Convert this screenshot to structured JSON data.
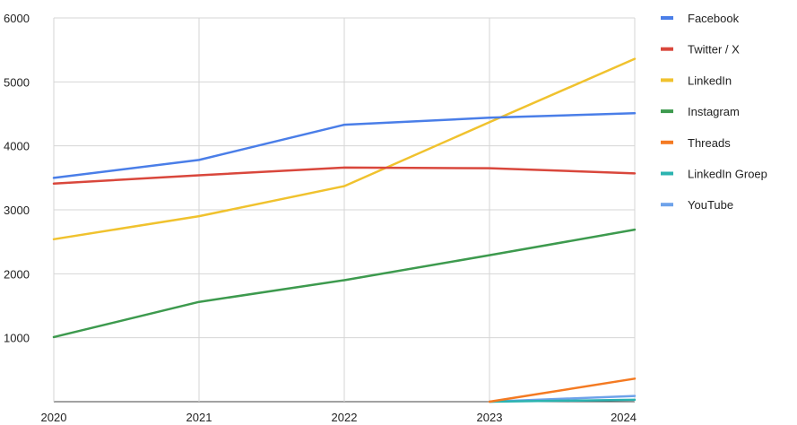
{
  "chart_data": {
    "type": "line",
    "x": [
      "2020",
      "2021",
      "2022",
      "2023",
      "2024"
    ],
    "ylim": [
      0,
      6000
    ],
    "yticks": [
      "1000",
      "2000",
      "3000",
      "4000",
      "5000",
      "6000"
    ],
    "grid": true,
    "legend_position": "right",
    "series": [
      {
        "name": "Facebook",
        "color": "#4a7ee8",
        "values": [
          3500,
          3780,
          4330,
          4440,
          4510
        ]
      },
      {
        "name": "Twitter / X",
        "color": "#d9473c",
        "values": [
          3410,
          3540,
          3660,
          3650,
          3570
        ]
      },
      {
        "name": "LinkedIn",
        "color": "#f0c22e",
        "values": [
          2540,
          2900,
          3370,
          4370,
          5360
        ]
      },
      {
        "name": "Instagram",
        "color": "#3d9a4e",
        "values": [
          1010,
          1560,
          1900,
          2290,
          2690
        ]
      },
      {
        "name": "Threads",
        "color": "#f47a22",
        "values": [
          null,
          null,
          null,
          0,
          360
        ]
      },
      {
        "name": "LinkedIn Groep",
        "color": "#2bb3b0",
        "values": [
          null,
          null,
          null,
          0,
          30
        ]
      },
      {
        "name": "YouTube",
        "color": "#6ea2ea",
        "values": [
          null,
          null,
          null,
          0,
          90
        ]
      }
    ]
  }
}
